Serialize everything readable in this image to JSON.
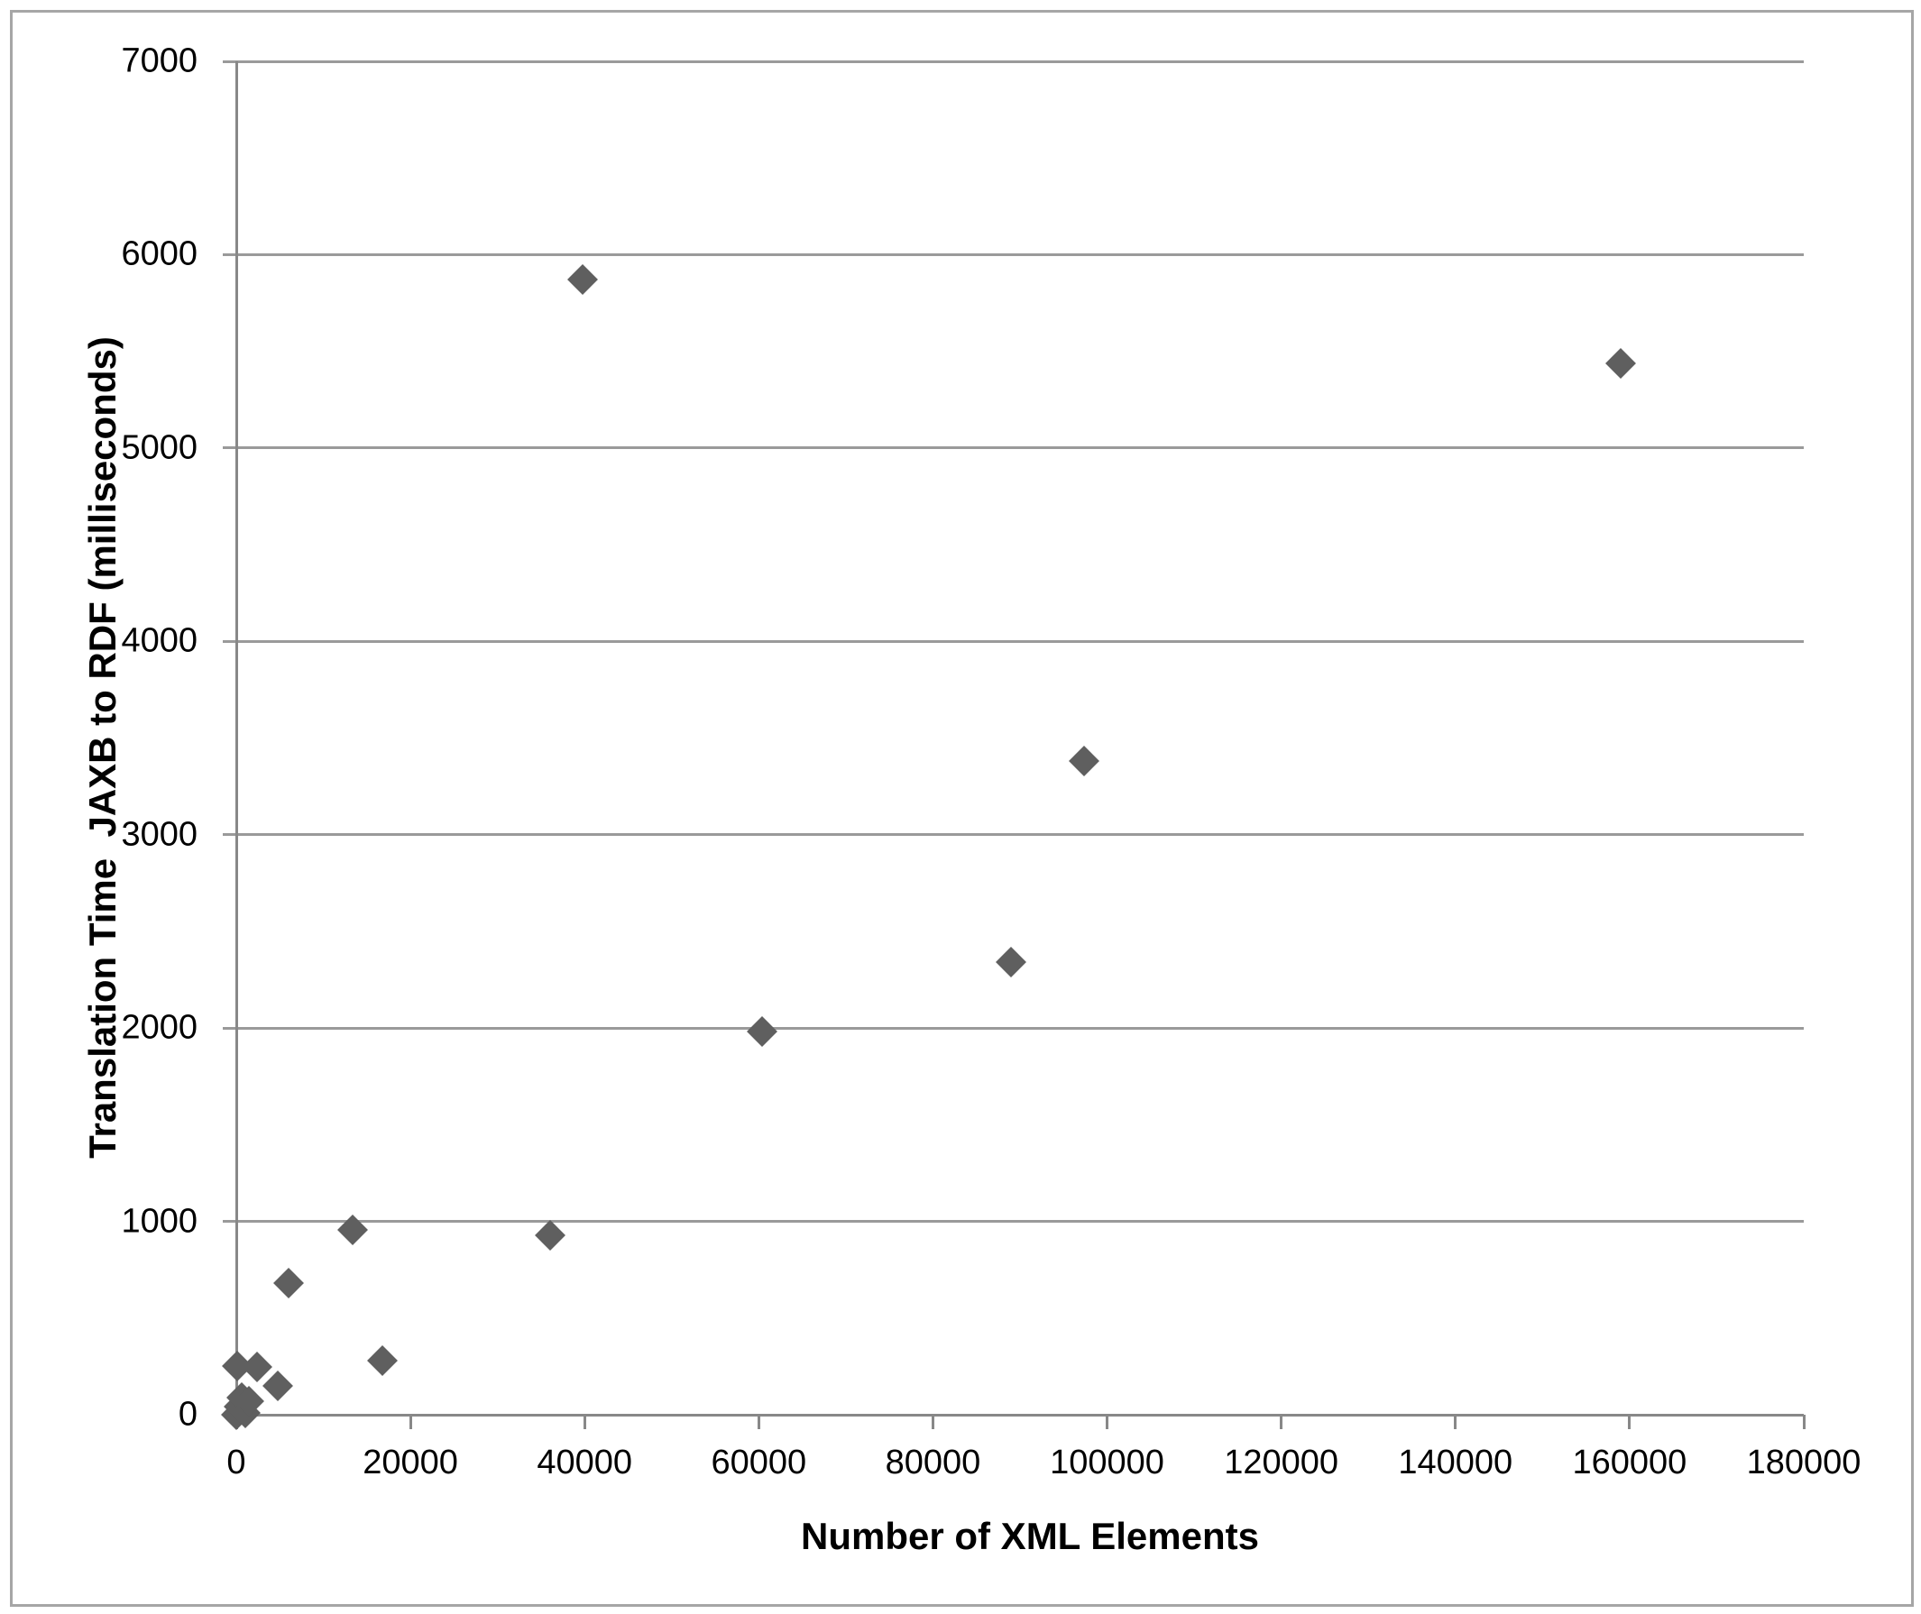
{
  "chart_data": {
    "type": "scatter",
    "title": "",
    "xlabel": "Number of XML Elements",
    "ylabel": "Translation Time  JAXB to RDF (milliseconds)",
    "xlim": [
      0,
      180000
    ],
    "ylim": [
      0,
      7000
    ],
    "x_ticks": [
      0,
      20000,
      40000,
      60000,
      80000,
      100000,
      120000,
      140000,
      160000,
      180000
    ],
    "x_tick_labels": [
      "0",
      "20000",
      "40000",
      "60000",
      "80000",
      "100000",
      "120000",
      "140000",
      "160000",
      "180000"
    ],
    "y_ticks": [
      0,
      1000,
      2000,
      3000,
      4000,
      5000,
      6000,
      7000
    ],
    "y_tick_labels": [
      "0",
      "1000",
      "2000",
      "3000",
      "4000",
      "5000",
      "6000",
      "7000"
    ],
    "grid": "horizontal-only",
    "legend": "none",
    "marker": "diamond",
    "points": [
      [
        50,
        0
      ],
      [
        100,
        253
      ],
      [
        300,
        40
      ],
      [
        620,
        90
      ],
      [
        1000,
        10
      ],
      [
        1400,
        70
      ],
      [
        2400,
        246
      ],
      [
        4800,
        150
      ],
      [
        6000,
        680
      ],
      [
        13400,
        957
      ],
      [
        16800,
        280
      ],
      [
        36000,
        930
      ],
      [
        39800,
        5870
      ],
      [
        60400,
        1980
      ],
      [
        89000,
        2340
      ],
      [
        97400,
        3380
      ],
      [
        159000,
        5440
      ]
    ],
    "colors": {
      "marker": "#5f5f5f",
      "gridline": "#9a9a9a",
      "axis": "#888888",
      "text": "#000000",
      "border": "#a6a6a6",
      "background": "#ffffff"
    }
  }
}
